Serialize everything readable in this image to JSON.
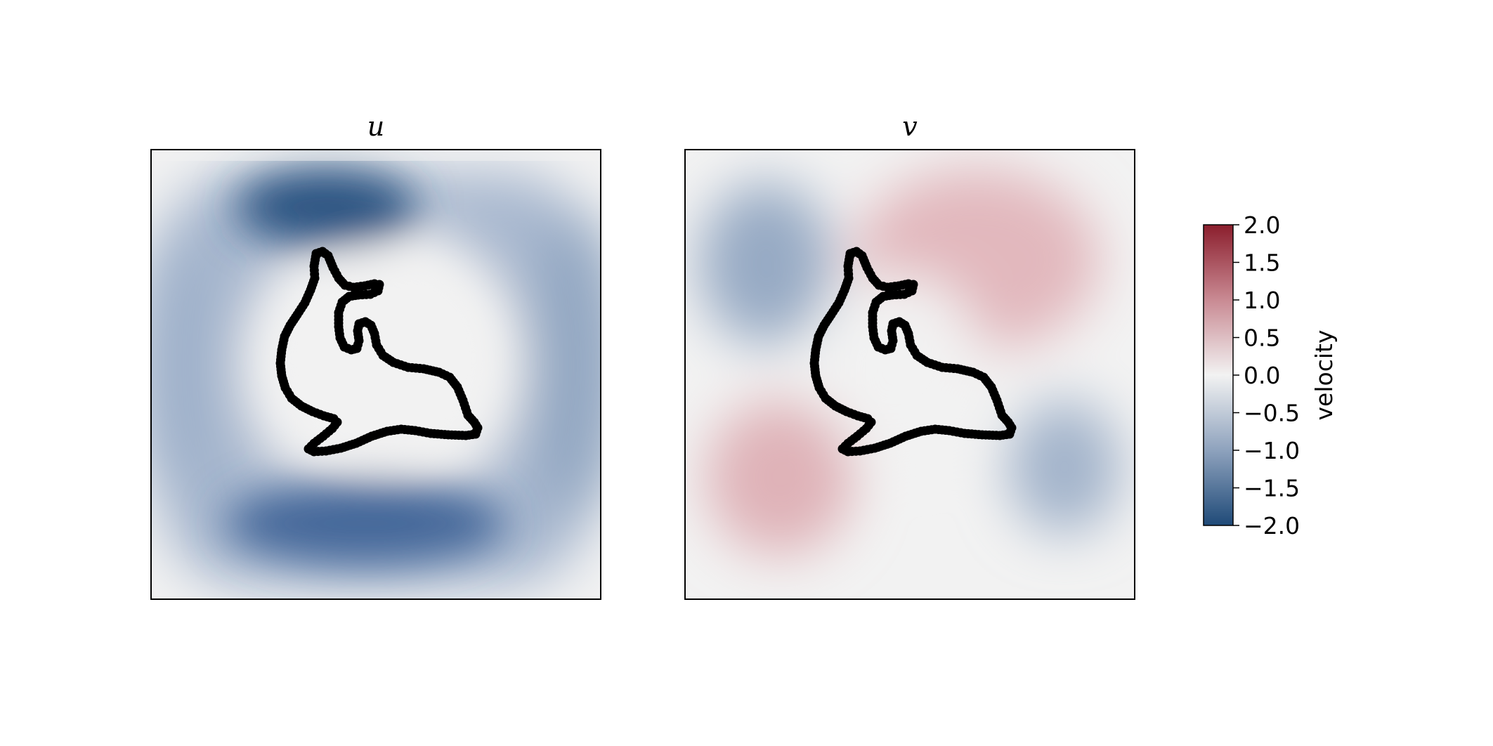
{
  "chart_data": {
    "type": "heatmap",
    "panels": [
      {
        "title": "u",
        "field": "u",
        "description_values": {
          "background": 0.0,
          "top_lobe_min": -1.95,
          "bottom_lobe_min": -1.7,
          "side_ring": -0.9,
          "outer_edge": -0.4,
          "inside_body": 0.0
        }
      },
      {
        "title": "v",
        "field": "v",
        "description_values": {
          "background": 0.0,
          "upper_left_lobe": -0.95,
          "upper_right_lobe": 0.65,
          "lower_left_lobe": 0.75,
          "lower_right_lobe": -0.9,
          "inside_body": 0.0
        }
      }
    ],
    "colorbar": {
      "label": "velocity",
      "ticks": [
        "2.0",
        "1.5",
        "1.0",
        "0.5",
        "0.0",
        "−0.5",
        "−1.0",
        "−1.5",
        "−2.0"
      ],
      "range": [
        -2.0,
        2.0
      ],
      "colors": {
        "high": "#8b1e2d",
        "mid": "#f2f2f2",
        "low": "#1f4a78"
      }
    },
    "outline": {
      "shape": "dolphin",
      "marker_color": "#000000"
    }
  }
}
